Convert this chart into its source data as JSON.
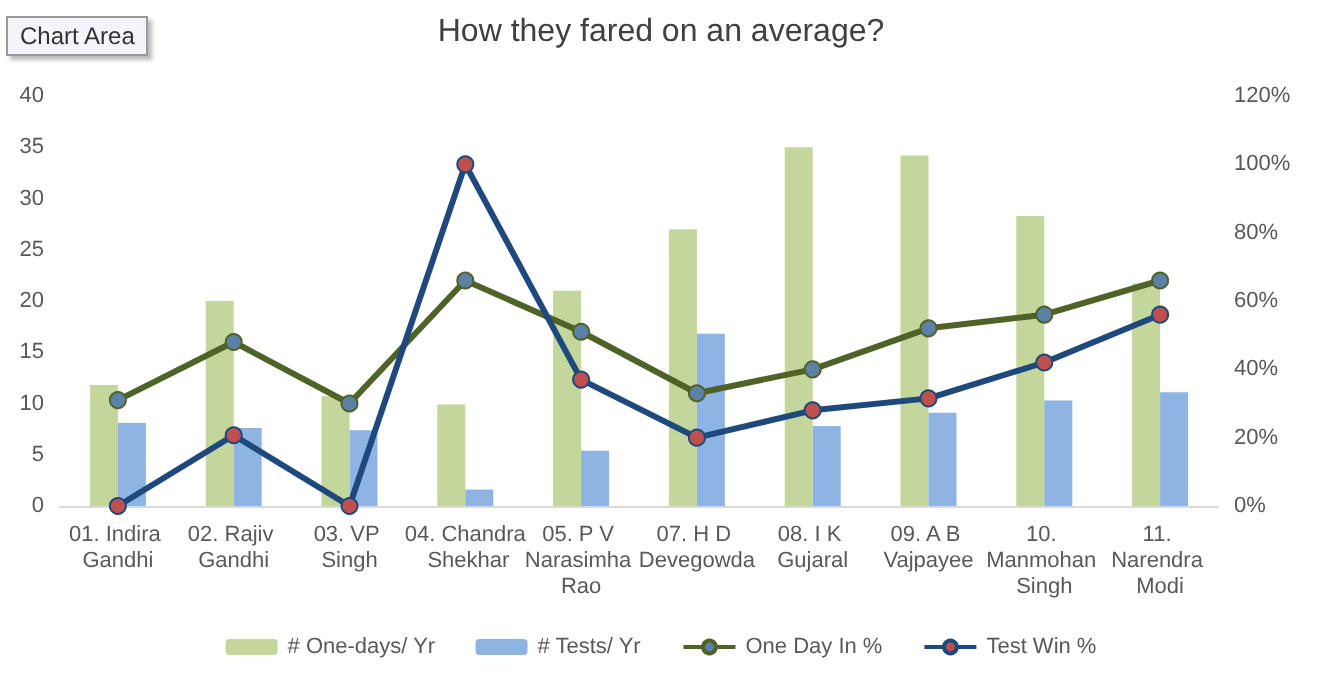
{
  "chart_data": {
    "type": "bar",
    "title": "How they fared on an average?",
    "categories": [
      "01. Indira Gandhi",
      "02. Rajiv Gandhi",
      "03. VP Singh",
      "04. Chandra Shekhar",
      "05. P V Narasimha Rao",
      "07. H D Devegowda",
      "08. I K Gujaral",
      "09. A B Vajpayee",
      "10. Manmohan Singh",
      "11. Narendra Modi"
    ],
    "series": [
      {
        "name": "# One-days/ Yr",
        "color": "#c3d69b",
        "values": [
          11.8,
          20,
          10.7,
          9.9,
          21,
          27,
          35,
          34.2,
          28.3,
          21.7
        ]
      },
      {
        "name": "# Tests/ Yr",
        "color": "#8eb4e3",
        "values": [
          8.1,
          7.6,
          7.4,
          1.6,
          5.4,
          16.8,
          7.8,
          9.1,
          10.3,
          11.1
        ]
      },
      {
        "name": "One Day In %",
        "type": "line",
        "axis": "y2",
        "color": "#4f6228",
        "values": [
          31,
          48,
          30,
          66,
          51,
          33,
          40,
          52,
          56,
          66
        ]
      },
      {
        "name": "Test Win %",
        "type": "line",
        "axis": "y2",
        "color": "#1f497d",
        "values": [
          0,
          20.7,
          0,
          100,
          37,
          20,
          28,
          31.5,
          42,
          56
        ]
      }
    ],
    "ylim": [
      0,
      40
    ],
    "yticks": [
      0,
      5,
      10,
      15,
      20,
      25,
      30,
      35,
      40
    ],
    "y2lim": [
      0,
      120
    ],
    "y2ticks": [
      {
        "value": 0,
        "label": "0%"
      },
      {
        "value": 20,
        "label": "20%"
      },
      {
        "value": 40,
        "label": "40%"
      },
      {
        "value": 60,
        "label": "60%"
      },
      {
        "value": 80,
        "label": "80%"
      },
      {
        "value": 100,
        "label": "100%"
      },
      {
        "value": 120,
        "label": "120%"
      }
    ],
    "annotations": [
      "Chart Area"
    ],
    "grid": false,
    "legend": "bottom",
    "marker": "circle"
  }
}
